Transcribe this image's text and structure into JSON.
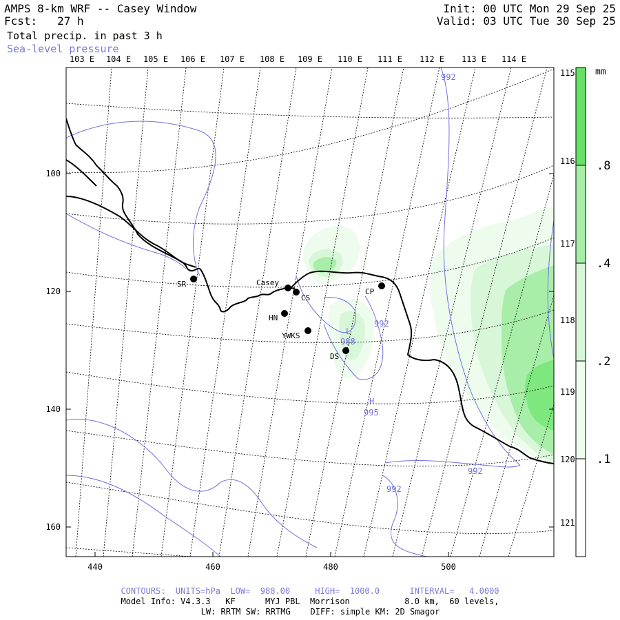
{
  "header": {
    "title": "AMPS 8-km WRF -- Casey Window",
    "forecast": "Fcst:   27 h",
    "field": "Total precip. in past 3 h",
    "overlay": "Sea-level pressure",
    "init": "Init: 00 UTC Mon 29 Sep 25",
    "valid": "Valid: 03 UTC Tue 30 Sep 25"
  },
  "top_longitudes": [
    "103 E",
    "104 E",
    "105 E",
    "106 E",
    "107 E",
    "108 E",
    "109 E",
    "110 E",
    "111 E",
    "112 E",
    "113 E",
    "114 E"
  ],
  "right_latitudes": [
    "115 E",
    "116 E",
    "117 E",
    "118 E",
    "119 E",
    "120 E",
    "121 E"
  ],
  "y_axis": [
    "100",
    "120",
    "140",
    "160"
  ],
  "x_axis": [
    "440",
    "460",
    "480",
    "500"
  ],
  "stations": [
    {
      "label": "SR"
    },
    {
      "label": "Casey"
    },
    {
      "label": "CS"
    },
    {
      "label": "CP"
    },
    {
      "label": "HN"
    },
    {
      "label": "YWKS"
    },
    {
      "label": "DS"
    }
  ],
  "pressure_labels": [
    {
      "text": "992"
    },
    {
      "text": "992"
    },
    {
      "text": "L"
    },
    {
      "text": "988"
    },
    {
      "text": "H"
    },
    {
      "text": "995"
    },
    {
      "text": "992"
    },
    {
      "text": "992"
    }
  ],
  "colorbar": {
    "unit": "mm",
    "ticks": [
      ".8",
      ".4",
      ".2",
      ".1"
    ],
    "colors": [
      "#66e066",
      "#a8eea8",
      "#d8f6d8",
      "#eefcee"
    ]
  },
  "colors": {
    "isobar": "#7070e0",
    "precip_light": "#eefcee",
    "precip_mid": "#d8f6d8",
    "precip_high": "#a8eea8",
    "precip_max": "#66e066"
  },
  "footer": {
    "contours": "CONTOURS:  UNITS=hPa  LOW=  988.00     HIGH=  1000.0      INTERVAL=   4.0000",
    "model_info": "Model Info: V4.3.3   KF      MYJ PBL  Morrison           8.0 km,  60 levels,",
    "physics": "LW: RRTM SW: RRTMG    DIFF: simple KM: 2D Smagor"
  }
}
